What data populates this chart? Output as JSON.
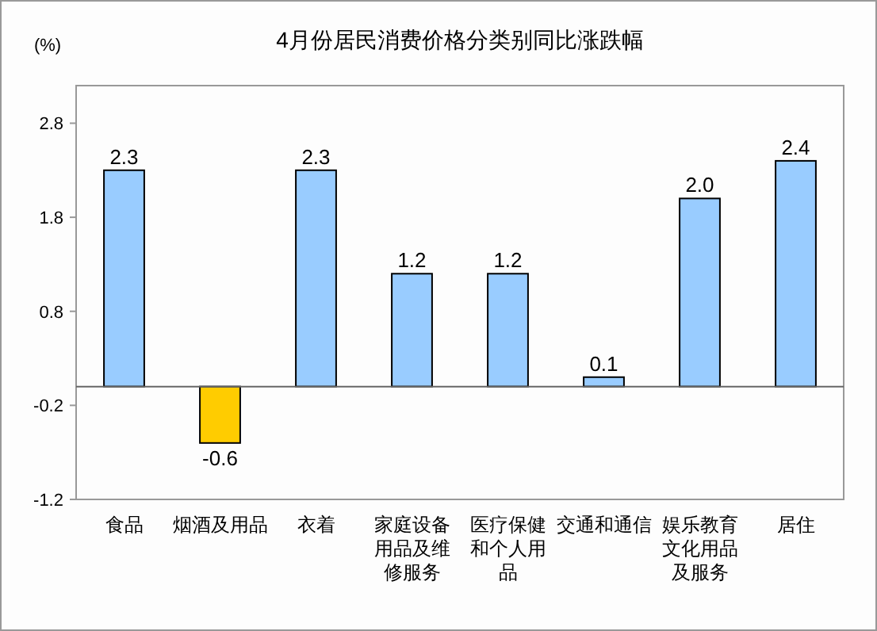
{
  "chart_data": {
    "type": "bar",
    "title": "4月份居民消费价格分类别同比涨跌幅",
    "ylabel": "(%)",
    "categories": [
      "食品",
      "烟酒及用品",
      "衣着",
      "家庭设备用品及维修服务",
      "医疗保健和个人用品",
      "交通和通信",
      "娱乐教育文化用品及服务",
      "居住"
    ],
    "values": [
      2.3,
      -0.6,
      2.3,
      1.2,
      1.2,
      0.1,
      2.0,
      2.4
    ],
    "value_labels": [
      "2.3",
      "-0.6",
      "2.3",
      "1.2",
      "1.2",
      "0.1",
      "2.0",
      "2.4"
    ],
    "colors": [
      "#99ccff",
      "#ffcc00",
      "#99ccff",
      "#99ccff",
      "#99ccff",
      "#99ccff",
      "#99ccff",
      "#99ccff"
    ],
    "ylim": [
      -1.2,
      3.2
    ],
    "yticks": [
      -1.2,
      -0.2,
      0.8,
      1.8,
      2.8
    ],
    "grid": false
  }
}
